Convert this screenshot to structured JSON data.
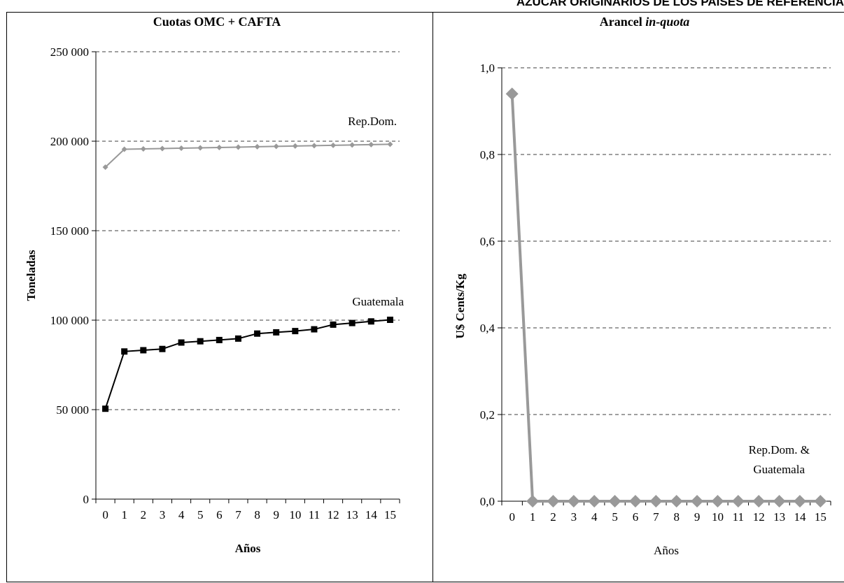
{
  "header": {
    "title": "AZÚCAR ORIGINARIOS  DE LOS PAÍSES DE REFERENCIA"
  },
  "chart_data": [
    {
      "type": "line",
      "title": "Cuotas OMC + CAFTA",
      "xlabel": "Años",
      "ylabel": "Toneladas",
      "x": [
        0,
        1,
        2,
        3,
        4,
        5,
        6,
        7,
        8,
        9,
        10,
        11,
        12,
        13,
        14,
        15
      ],
      "ylim": [
        0,
        250000
      ],
      "yticks": [
        0,
        50000,
        100000,
        150000,
        200000,
        250000
      ],
      "ytick_labels": [
        "0",
        "50 000",
        "100 000",
        "150 000",
        "200 000",
        "250 000"
      ],
      "xtick_labels": [
        "0",
        "1",
        "2",
        "3",
        "4",
        "5",
        "6",
        "7",
        "8",
        "9",
        "10",
        "11",
        "12",
        "13",
        "14",
        "15"
      ],
      "grid": "horizontal dashed",
      "series": [
        {
          "name": "Rep.Dom.",
          "color": "#999999",
          "marker": "diamond",
          "values": [
            185500,
            195500,
            195700,
            195900,
            196100,
            196300,
            196500,
            196700,
            196900,
            197100,
            197300,
            197500,
            197700,
            197900,
            198100,
            198300
          ]
        },
        {
          "name": "Guatemala",
          "color": "#000000",
          "marker": "square",
          "values": [
            50500,
            82500,
            83200,
            83900,
            87500,
            88200,
            88900,
            89700,
            92500,
            93200,
            93900,
            94900,
            97500,
            98400,
            99300,
            100200
          ]
        }
      ]
    },
    {
      "type": "line",
      "title_plain": "Arancel ",
      "title_italic": "in-quota",
      "xlabel": "Años",
      "ylabel": "U$ Cents/Kg",
      "x": [
        0,
        1,
        2,
        3,
        4,
        5,
        6,
        7,
        8,
        9,
        10,
        11,
        12,
        13,
        14,
        15
      ],
      "ylim": [
        0,
        1.0
      ],
      "yticks": [
        0,
        0.2,
        0.4,
        0.6,
        0.8,
        1.0
      ],
      "ytick_labels": [
        "0,0",
        "0,2",
        "0,4",
        "0,6",
        "0,8",
        "1,0"
      ],
      "xtick_labels": [
        "0",
        "1",
        "2",
        "3",
        "4",
        "5",
        "6",
        "7",
        "8",
        "9",
        "10",
        "11",
        "12",
        "13",
        "14",
        "15"
      ],
      "grid": "horizontal dashed",
      "series": [
        {
          "name": "Rep.Dom. &",
          "name_line2": "Guatemala",
          "color": "#999999",
          "marker": "diamond",
          "values": [
            0.94,
            0,
            0,
            0,
            0,
            0,
            0,
            0,
            0,
            0,
            0,
            0,
            0,
            0,
            0,
            0
          ]
        }
      ]
    }
  ]
}
